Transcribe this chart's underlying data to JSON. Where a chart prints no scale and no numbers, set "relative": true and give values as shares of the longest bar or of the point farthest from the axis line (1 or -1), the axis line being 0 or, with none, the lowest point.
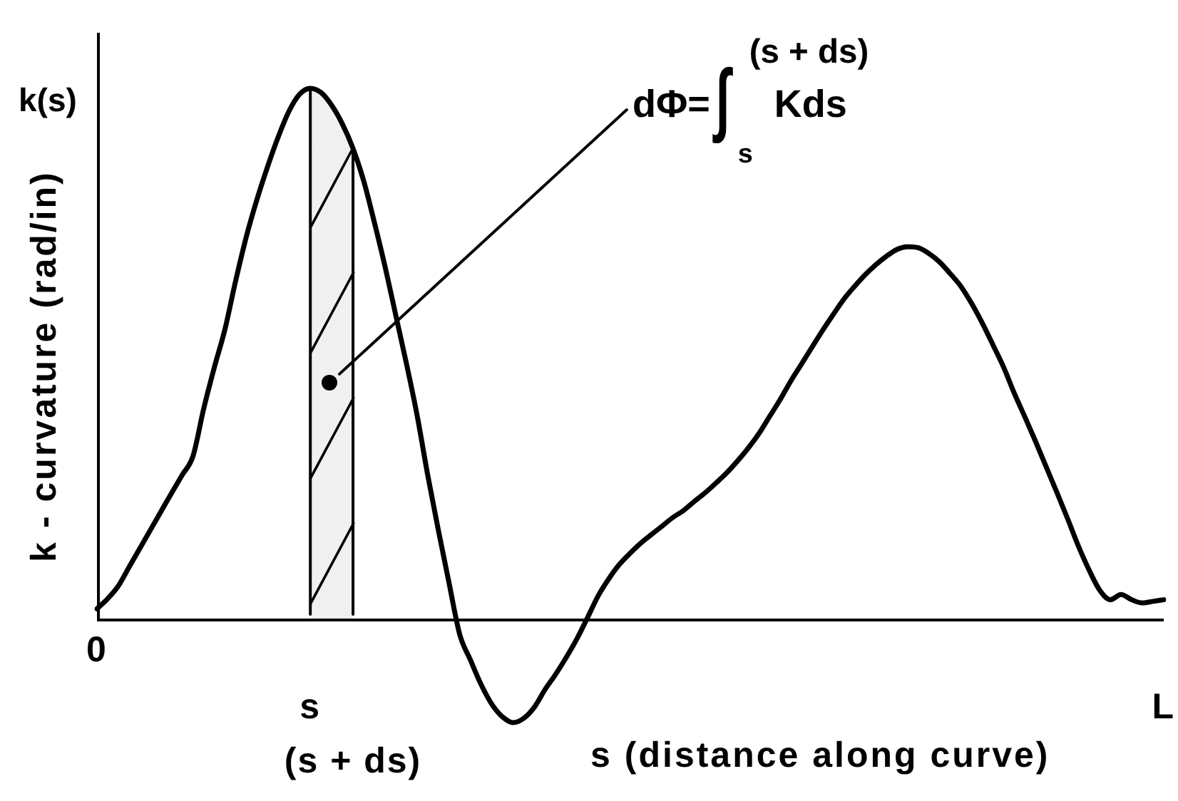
{
  "chart_data": {
    "type": "line",
    "relative": true,
    "xlabel": "s (distance along curve)",
    "ylabel": "k - curvature (rad/in)",
    "annotations": [
      "k(s)",
      "dΦ=∫$_{s}$$^{(s + ds)}$ Kds"
    ],
    "categories": [
      "0",
      null,
      null,
      null,
      null,
      null,
      null,
      null,
      null,
      null,
      null,
      null,
      null,
      null,
      null,
      null,
      null,
      null,
      null,
      null,
      "s",
      null,
      null,
      null,
      "(s + ds)",
      null,
      null,
      null,
      null,
      null,
      null,
      null,
      null,
      null,
      null,
      null,
      null,
      null,
      null,
      null,
      null,
      null,
      null,
      null,
      null,
      null,
      null,
      null,
      null,
      null,
      null,
      null,
      null,
      null,
      null,
      null,
      null,
      null,
      null,
      null,
      null,
      null,
      null,
      null,
      null,
      null,
      null,
      null,
      null,
      null,
      null,
      null,
      null,
      null,
      null,
      null,
      null,
      null,
      null,
      null,
      null,
      null,
      null,
      null,
      null,
      null,
      null,
      null,
      null,
      null,
      null,
      null,
      null,
      null,
      null,
      null,
      null,
      null,
      null,
      null,
      "L"
    ],
    "values": [
      0.021,
      0.04,
      0.064,
      0.099,
      0.134,
      0.169,
      0.204,
      0.239,
      0.273,
      0.308,
      0.397,
      0.475,
      0.547,
      0.638,
      0.721,
      0.791,
      0.853,
      0.909,
      0.957,
      0.989,
      1,
      0.992,
      0.968,
      0.933,
      0.887,
      0.826,
      0.748,
      0.665,
      0.574,
      0.483,
      0.386,
      0.273,
      0.169,
      0.07,
      -0.027,
      -0.075,
      -0.121,
      -0.158,
      -0.182,
      -0.193,
      -0.185,
      -0.164,
      -0.131,
      -0.102,
      -0.07,
      -0.035,
      0.005,
      0.046,
      0.078,
      0.105,
      0.126,
      0.145,
      0.161,
      0.177,
      0.193,
      0.206,
      0.223,
      0.239,
      0.257,
      0.276,
      0.298,
      0.322,
      0.349,
      0.381,
      0.413,
      0.448,
      0.48,
      0.512,
      0.544,
      0.574,
      0.603,
      0.627,
      0.649,
      0.668,
      0.684,
      0.697,
      0.702,
      0.7,
      0.689,
      0.673,
      0.651,
      0.627,
      0.595,
      0.558,
      0.517,
      0.475,
      0.426,
      0.381,
      0.335,
      0.287,
      0.239,
      0.19,
      0.139,
      0.094,
      0.056,
      0.038,
      0.048,
      0.038,
      0.032,
      0.035,
      0.038
    ],
    "color": "#000000",
    "marker": "none",
    "line_style": "solid",
    "bands": [
      {
        "axis": "x",
        "from": "s",
        "to": "(s + ds)"
      }
    ]
  }
}
